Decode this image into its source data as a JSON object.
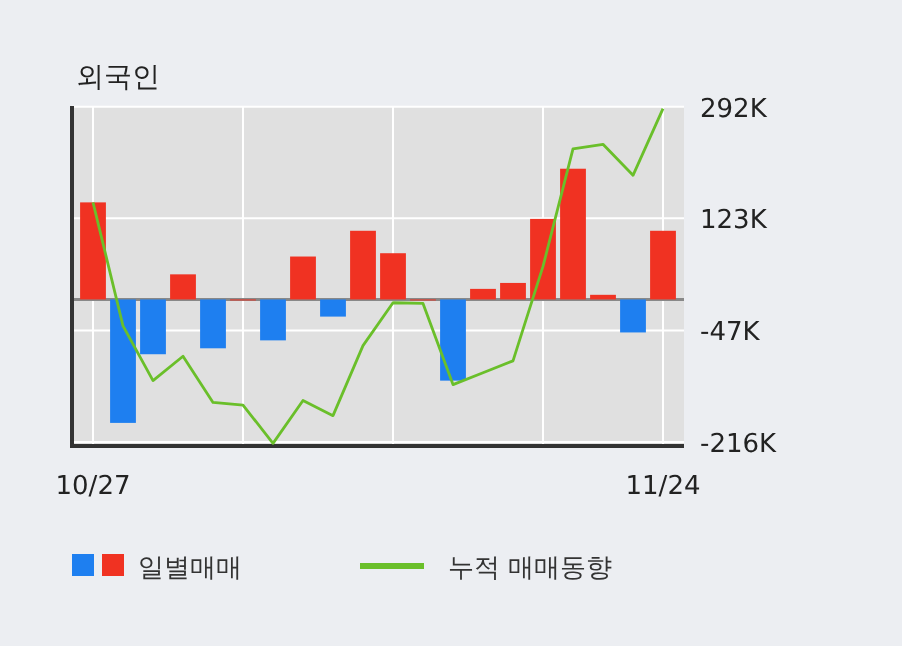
{
  "chart_data": {
    "type": "bar",
    "title": "외국인",
    "categories": [
      "10/27",
      null,
      null,
      null,
      null,
      null,
      null,
      null,
      null,
      null,
      null,
      null,
      null,
      null,
      null,
      null,
      null,
      null,
      null,
      "11/24"
    ],
    "series": [
      {
        "name": "일별매매",
        "colors": [
          "#f03222",
          "#1e7ff0",
          "#1e7ff0",
          "#f03222",
          "#1e7ff0",
          "#f03222",
          "#1e7ff0",
          "#f03222",
          "#1e7ff0",
          "#f03222",
          "#f03222",
          "#f03222",
          "#1e7ff0",
          "#f03222",
          "#f03222",
          "#f03222",
          "#f03222",
          "#f03222",
          "#1e7ff0",
          "#f03222"
        ],
        "values": [
          147000,
          -187000,
          -83000,
          38000,
          -74000,
          0,
          -62000,
          65000,
          -26000,
          104000,
          70000,
          0,
          -123000,
          16000,
          25000,
          122000,
          198000,
          7000,
          -50000,
          104000
        ]
      },
      {
        "name": "누적 매매동향",
        "type": "line",
        "color": "#6abf2a",
        "values": [
          147000,
          -40000,
          -123000,
          -86000,
          -156000,
          -160000,
          -218000,
          -153000,
          -176000,
          -70000,
          -5000,
          -6000,
          -129000,
          -111000,
          -93000,
          50000,
          228000,
          235000,
          188000,
          289000
        ]
      }
    ],
    "ylim": [
      -222000,
      293000
    ],
    "yticks": [
      {
        "value": 292000,
        "label": "292K"
      },
      {
        "value": 123000,
        "label": "123K"
      },
      {
        "value": -47000,
        "label": "-47K"
      },
      {
        "value": -216000,
        "label": "-216K"
      }
    ],
    "grid": true,
    "legend": "bottom",
    "marker": "none"
  }
}
